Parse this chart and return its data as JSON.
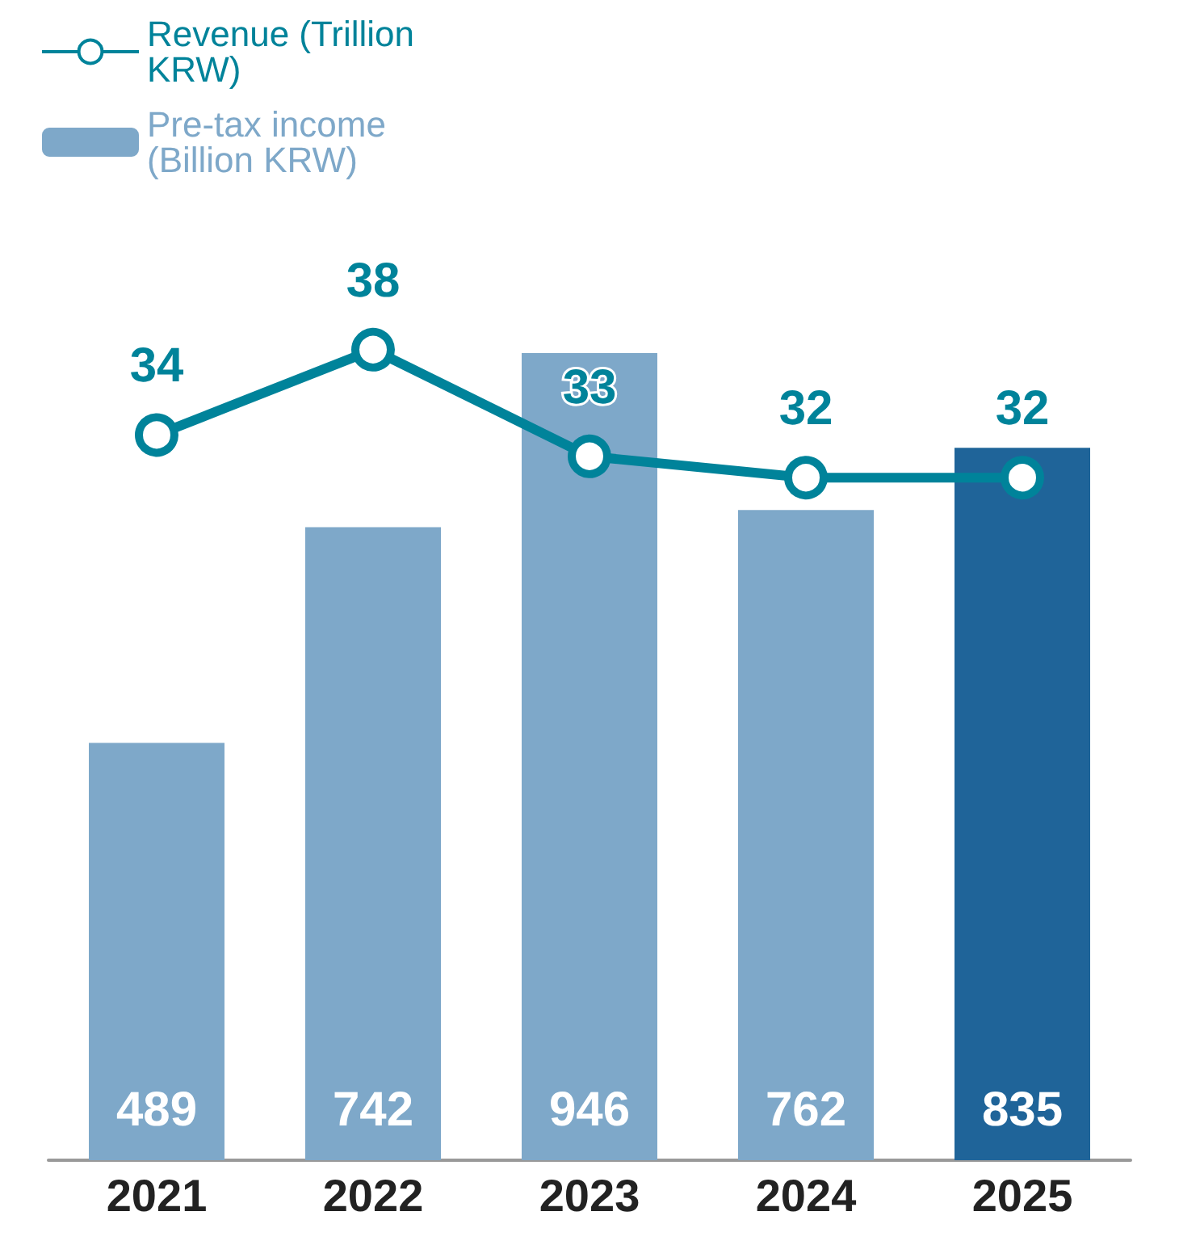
{
  "chart_data": {
    "type": "bar",
    "categories": [
      "2021",
      "2022",
      "2023",
      "2024",
      "2025"
    ],
    "series": [
      {
        "name": "Revenue (Trillion KRW)",
        "type": "line",
        "axis": "y2",
        "color": "#00839a",
        "values": [
          34,
          38,
          33,
          32,
          32
        ]
      },
      {
        "name": "Pre-tax income (Billion KRW)",
        "color": "#7ea8c9",
        "colors": [
          "#7ea8c9",
          "#7ea8c9",
          "#7ea8c9",
          "#7ea8c9",
          "#1f6499"
        ],
        "values": [
          489,
          742,
          946,
          762,
          835
        ]
      }
    ],
    "data_labels": true,
    "legend": "top left",
    "marker": "circle"
  }
}
